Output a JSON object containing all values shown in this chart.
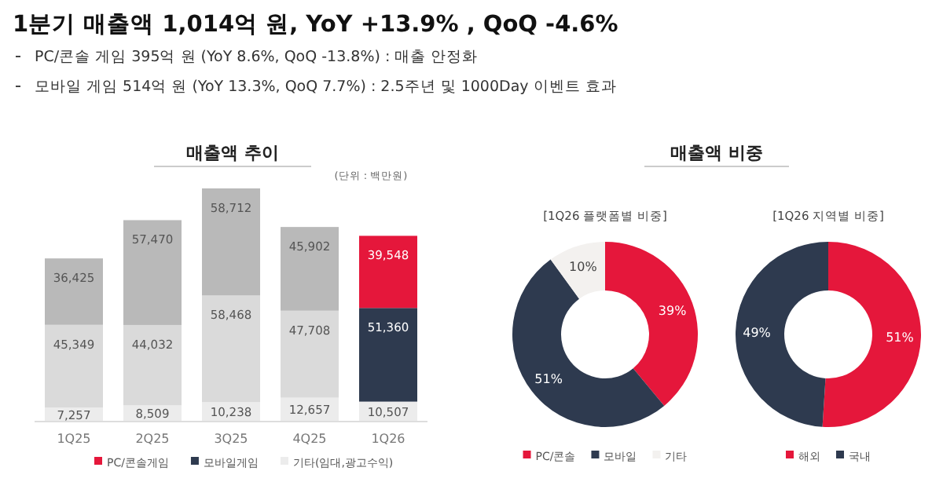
{
  "chart_data": [
    {
      "type": "other",
      "title": "1분기 매출액 1,014억 원, YoY +13.9%  , QoQ -4.6%",
      "annotations": [
        "PC/콘솔 게임  395억 원 (YoY 8.6%, QoQ -13.8%) : 매출 안정화",
        "모바일 게임 514억 원 (YoY 13.3%, QoQ 7.7%) : 2.5주년 및 1000Day 이벤트 효과"
      ]
    },
    {
      "type": "bar",
      "title": "매출액 추이",
      "subtitle": "(단위 : 백만원)",
      "stacked": true,
      "legend": "bottom",
      "categories": [
        "1Q25",
        "2Q25",
        "3Q25",
        "4Q25",
        "1Q26"
      ],
      "series": [
        {
          "name": "기타(임대,광고수익)",
          "color": "#ececec",
          "colors": [
            "#ececec",
            "#ececec",
            "#ececec",
            "#ececec",
            "#ececec"
          ],
          "values": [
            7257,
            8509,
            10238,
            12657,
            10507
          ],
          "value_labels": [
            "7,257",
            "8,509",
            "10,238",
            "12,657",
            "10,507"
          ]
        },
        {
          "name": "모바일게임",
          "color": "#2e3a4f",
          "colors": [
            "#dadada",
            "#dadada",
            "#dadada",
            "#dadada",
            "#2e3a4f"
          ],
          "values": [
            45349,
            44032,
            58468,
            47708,
            51360
          ],
          "value_labels": [
            "45,349",
            "44,032",
            "58,468",
            "47,708",
            "51,360"
          ]
        },
        {
          "name": "PC/콘솔게임",
          "color": "#e5173b",
          "colors": [
            "#b9b9b9",
            "#b9b9b9",
            "#b9b9b9",
            "#b9b9b9",
            "#e5173b"
          ],
          "values": [
            36425,
            57470,
            58712,
            45902,
            39548
          ],
          "value_labels": [
            "36,425",
            "57,470",
            "58,712",
            "45,902",
            "39,548"
          ]
        }
      ]
    },
    {
      "type": "donut",
      "title": "매출액 비중",
      "subtitle": "[1Q26 플랫폼별 비중]",
      "legend": "bottom",
      "categories": [
        "PC/콘솔",
        "모바일",
        "기타"
      ],
      "values": [
        39,
        51,
        10
      ],
      "value_labels": [
        "39%",
        "51%",
        "10%"
      ],
      "colors": [
        "#e5173b",
        "#2e3a4f",
        "#f3f1ef"
      ]
    },
    {
      "type": "donut",
      "subtitle": "[1Q26 지역별 비중]",
      "legend": "bottom",
      "categories": [
        "해외",
        "국내"
      ],
      "values": [
        51,
        49
      ],
      "value_labels": [
        "51%",
        "49%"
      ],
      "colors": [
        "#e5173b",
        "#2e3a4f"
      ]
    }
  ]
}
